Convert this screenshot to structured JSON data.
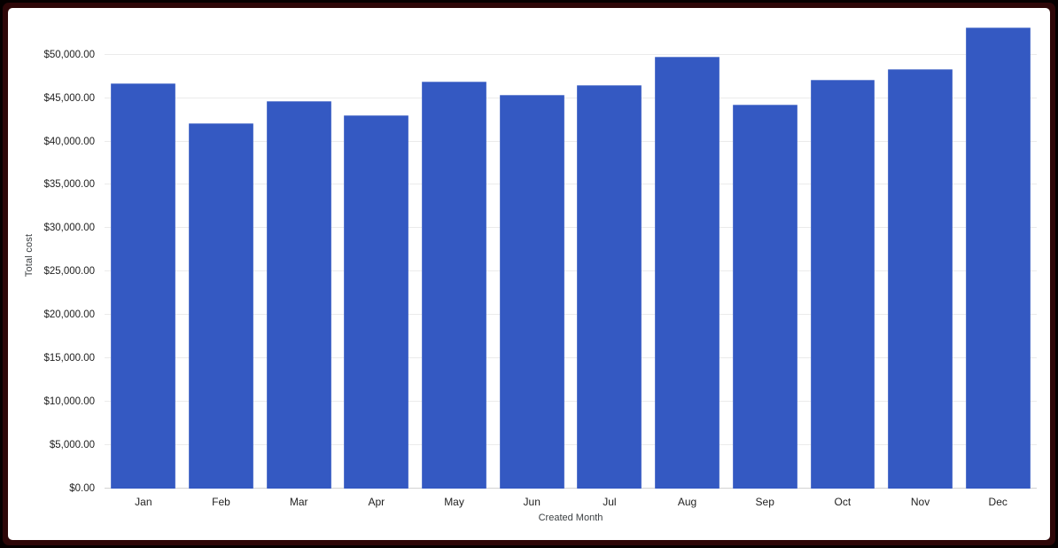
{
  "frame": {
    "outer_border_color": "#060000",
    "inner_border_color": "#2e0708",
    "card_background": "#ffffff"
  },
  "chart_data": {
    "type": "bar",
    "title": "",
    "categories": [
      "Jan",
      "Feb",
      "Mar",
      "Apr",
      "May",
      "Jun",
      "Jul",
      "Aug",
      "Sep",
      "Oct",
      "Nov",
      "Dec"
    ],
    "values": [
      46700,
      42100,
      44700,
      43000,
      46900,
      45400,
      46500,
      49800,
      44200,
      47100,
      48300,
      53100
    ],
    "xlabel": "Created Month",
    "ylabel": "Total cost",
    "ylim": [
      0,
      53850
    ],
    "ytick_step": 5000,
    "ytick_values": [
      0,
      5000,
      10000,
      15000,
      20000,
      25000,
      30000,
      35000,
      40000,
      45000,
      50000
    ],
    "ytick_labels": [
      "$0.00",
      "$5,000.00",
      "$10,000.00",
      "$15,000.00",
      "$20,000.00",
      "$25,000.00",
      "$30,000.00",
      "$35,000.00",
      "$40,000.00",
      "$45,000.00",
      "$50,000.00"
    ],
    "grid": true,
    "legend_position": "none",
    "bar_color": "#3459c2",
    "gridline_color": "#ebebeb",
    "axis_text_color": "#1f1f1f",
    "axis_title_color": "#3c4043"
  }
}
